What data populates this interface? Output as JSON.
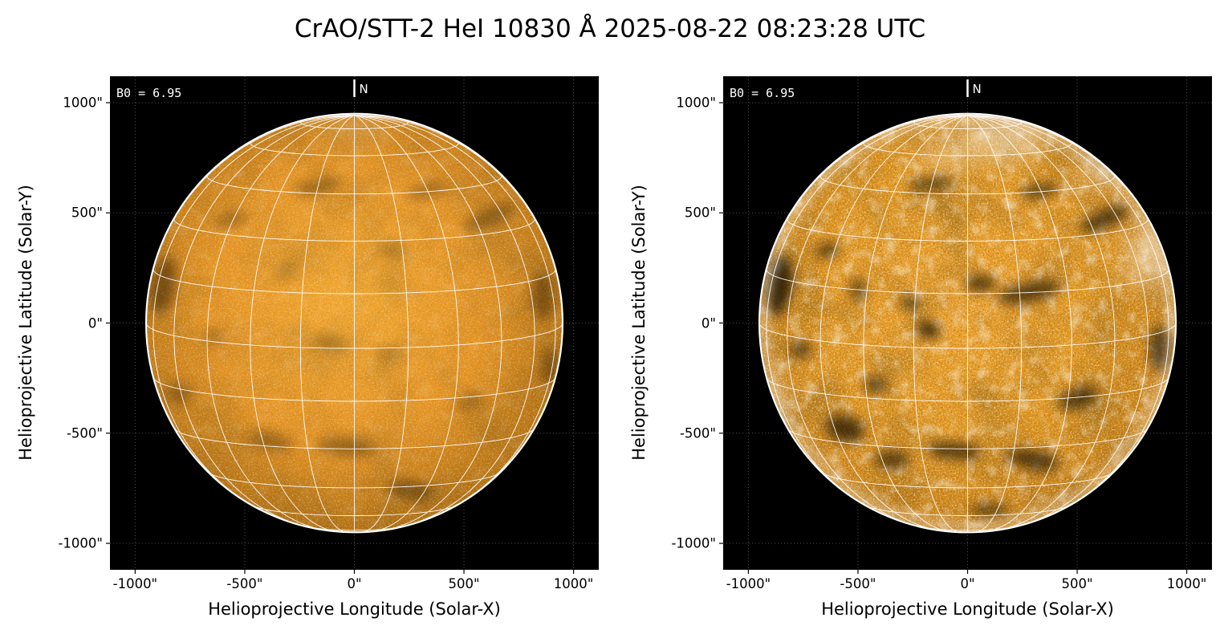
{
  "title": "CrAO/STT-2 HeI 10830 Å 2025-08-22 08:23:28 UTC",
  "chart_data": {
    "type": "heatmap",
    "title": "CrAO/STT-2 HeI 10830 Å 2025-08-22 08:23:28 UTC",
    "description": "Two full-disk solar images in the He I 10830 Å line with an overlaid white heliographic coordinate grid; left panel low-contrast, right panel contrast-enhanced.",
    "xlabel": "Helioprojective Longitude (Solar-X)",
    "ylabel": "Helioprojective Latitude (Solar-Y)",
    "x_tick_values": [
      -1000,
      -500,
      0,
      500,
      1000
    ],
    "x_tick_labels": [
      "-1000\"",
      "-500\"",
      "0\"",
      "500\"",
      "1000\""
    ],
    "y_tick_values": [
      -1000,
      -500,
      0,
      500,
      1000
    ],
    "y_tick_labels": [
      "-1000\"",
      "-500\"",
      "0\"",
      "500\"",
      "1000\""
    ],
    "xlim": [
      -1115,
      1115
    ],
    "ylim": [
      -1120,
      1120
    ],
    "solar_radius_arcsec": 950,
    "b0_deg": 6.95,
    "grid_step_deg": 15,
    "grid_color": "#ffffff",
    "background_color": "#000000",
    "feature_format": [
      "x_arcsec",
      "y_arcsec",
      "rx_arcsec",
      "ry_arcsec",
      "rot_deg",
      "opacity"
    ],
    "panels": [
      {
        "name": "hei-disk-low-contrast",
        "b0_label": "B0 = 6.95",
        "north_label": "N",
        "style": {
          "disk_center": "#f2a72f",
          "disk_mid": "#e59424",
          "disk_edge": "#a96a10",
          "speckle_opacity": 0.5,
          "pepper_opacity": 0.22,
          "mottle_opacity": 0.38,
          "network_opacity": 0.15,
          "limb_bright_opacity": 0
        },
        "dark_features": [
          [
            -870,
            170,
            55,
            130,
            10,
            0.45
          ],
          [
            -800,
            -320,
            60,
            50,
            0,
            0.3
          ],
          [
            -640,
            -60,
            45,
            30,
            0,
            0.25
          ],
          [
            -560,
            470,
            70,
            30,
            -20,
            0.3
          ],
          [
            -170,
            620,
            110,
            28,
            -8,
            0.35
          ],
          [
            330,
            600,
            90,
            30,
            -15,
            0.3
          ],
          [
            620,
            480,
            130,
            35,
            -25,
            0.35
          ],
          [
            860,
            120,
            50,
            110,
            0,
            0.4
          ],
          [
            890,
            -200,
            45,
            80,
            0,
            0.35
          ],
          [
            -120,
            -90,
            80,
            45,
            10,
            0.25
          ],
          [
            160,
            -140,
            55,
            35,
            0,
            0.2
          ],
          [
            -380,
            -540,
            100,
            40,
            10,
            0.3
          ],
          [
            -40,
            -560,
            130,
            40,
            5,
            0.35
          ],
          [
            260,
            -760,
            110,
            38,
            8,
            0.4
          ],
          [
            520,
            -360,
            70,
            35,
            -10,
            0.25
          ],
          [
            -300,
            240,
            60,
            35,
            0,
            0.2
          ],
          [
            180,
            330,
            70,
            35,
            0,
            0.2
          ]
        ],
        "bright_features": [
          [
            0,
            900,
            160,
            45,
            0,
            0.22
          ]
        ]
      },
      {
        "name": "hei-disk-enhanced",
        "b0_label": "B0 = 6.95",
        "north_label": "N",
        "style": {
          "disk_center": "#eda02a",
          "disk_mid": "#e0951f",
          "disk_edge": "#c07a14",
          "speckle_opacity": 0.9,
          "pepper_opacity": 0.5,
          "mottle_opacity": 0.55,
          "network_opacity": 0.6,
          "limb_bright_opacity": 0.45
        },
        "dark_features": [
          [
            -860,
            170,
            60,
            140,
            8,
            0.8
          ],
          [
            -760,
            -120,
            50,
            40,
            0,
            0.6
          ],
          [
            -640,
            330,
            55,
            35,
            -15,
            0.6
          ],
          [
            -560,
            -480,
            90,
            60,
            15,
            0.7
          ],
          [
            -420,
            -280,
            55,
            40,
            0,
            0.6
          ],
          [
            -180,
            -30,
            55,
            40,
            20,
            0.75
          ],
          [
            -260,
            90,
            45,
            30,
            0,
            0.6
          ],
          [
            60,
            180,
            70,
            40,
            0,
            0.65
          ],
          [
            280,
            140,
            150,
            45,
            -12,
            0.65
          ],
          [
            620,
            470,
            120,
            40,
            -25,
            0.65
          ],
          [
            330,
            600,
            90,
            30,
            -12,
            0.6
          ],
          [
            -170,
            630,
            100,
            30,
            -5,
            0.55
          ],
          [
            510,
            -340,
            90,
            45,
            -20,
            0.65
          ],
          [
            300,
            -620,
            120,
            45,
            10,
            0.65
          ],
          [
            -60,
            -580,
            120,
            40,
            5,
            0.65
          ],
          [
            -350,
            -620,
            80,
            40,
            0,
            0.6
          ],
          [
            880,
            -120,
            50,
            100,
            0,
            0.65
          ],
          [
            100,
            -850,
            90,
            30,
            0,
            0.55
          ],
          [
            -500,
            150,
            40,
            60,
            0,
            0.5
          ]
        ],
        "bright_features": [
          [
            150,
            830,
            200,
            80,
            0,
            0.5
          ],
          [
            -100,
            760,
            120,
            60,
            0,
            0.35
          ],
          [
            820,
            300,
            90,
            140,
            0,
            0.45
          ],
          [
            -880,
            -350,
            60,
            90,
            0,
            0.3
          ],
          [
            600,
            690,
            120,
            60,
            -20,
            0.35
          ]
        ]
      }
    ]
  }
}
